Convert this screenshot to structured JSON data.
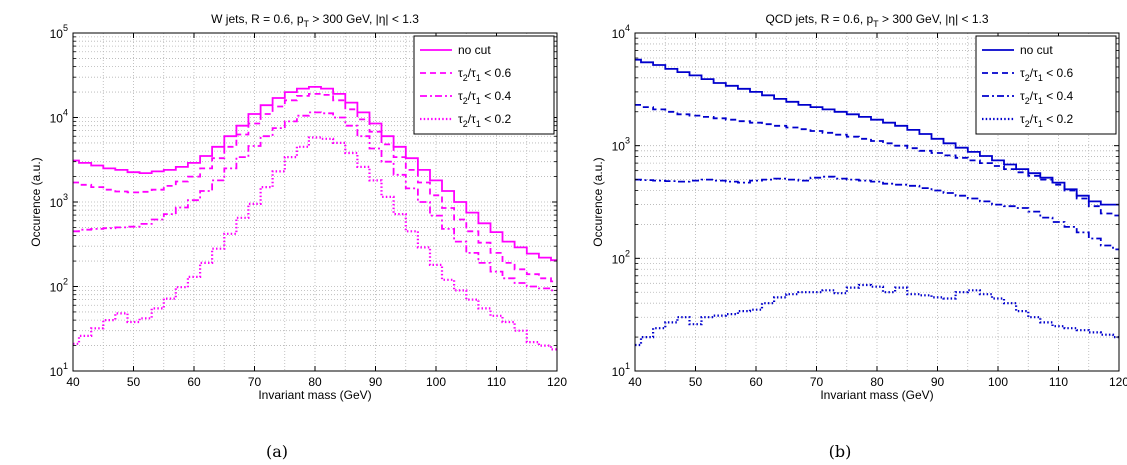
{
  "panels": [
    {
      "title_main": "W jets, R = 0.6, p",
      "title_sub": "T",
      "title_rest": " > 300 GeV, |η| < 1.3",
      "ylabel": "Occurence (a.u.)",
      "xlabel": "Invariant mass (GeV)",
      "caption": "(a)",
      "color": "#ff00ff",
      "y_ticks": [
        {
          "base": "10",
          "exp": "1"
        },
        {
          "base": "10",
          "exp": "2"
        },
        {
          "base": "10",
          "exp": "3"
        },
        {
          "base": "10",
          "exp": "4"
        },
        {
          "base": "10",
          "exp": "5"
        }
      ],
      "x_ticks": [
        "40",
        "50",
        "60",
        "70",
        "80",
        "90",
        "100",
        "110",
        "120"
      ],
      "legend": [
        {
          "main": "no cut",
          "style": "solid"
        },
        {
          "main": "τ",
          "s1": "2",
          "mid": "/τ",
          "s2": "1",
          "rest": " < 0.6",
          "style": "dashed"
        },
        {
          "main": "τ",
          "s1": "2",
          "mid": "/τ",
          "s2": "1",
          "rest": " < 0.4",
          "style": "dashdot"
        },
        {
          "main": "τ",
          "s1": "2",
          "mid": "/τ",
          "s2": "1",
          "rest": " < 0.2",
          "style": "dotted"
        }
      ]
    },
    {
      "title_main": "QCD jets, R = 0.6, p",
      "title_sub": "T",
      "title_rest": " > 300 GeV, |η| < 1.3",
      "ylabel": "Occurence (a.u.)",
      "xlabel": "Invariant mass (GeV)",
      "caption": "(b)",
      "color": "#0000cc",
      "y_ticks": [
        {
          "base": "10",
          "exp": "1"
        },
        {
          "base": "10",
          "exp": "2"
        },
        {
          "base": "10",
          "exp": "3"
        },
        {
          "base": "10",
          "exp": "4"
        }
      ],
      "x_ticks": [
        "40",
        "50",
        "60",
        "70",
        "80",
        "90",
        "100",
        "110",
        "120"
      ],
      "legend": [
        {
          "main": "no cut",
          "style": "solid"
        },
        {
          "main": "τ",
          "s1": "2",
          "mid": "/τ",
          "s2": "1",
          "rest": " < 0.6",
          "style": "dashed"
        },
        {
          "main": "τ",
          "s1": "2",
          "mid": "/τ",
          "s2": "1",
          "rest": " < 0.4",
          "style": "dashdot"
        },
        {
          "main": "τ",
          "s1": "2",
          "mid": "/τ",
          "s2": "1",
          "rest": " < 0.2",
          "style": "dotted"
        }
      ]
    }
  ],
  "chart_data": [
    {
      "type": "line",
      "title": "W jets, R = 0.6, pT > 300 GeV, |η| < 1.3",
      "xlabel": "Invariant mass (GeV)",
      "ylabel": "Occurence (a.u.)",
      "xlim": [
        40,
        120
      ],
      "ylim": [
        10,
        100000
      ],
      "yscale": "log",
      "grid": true,
      "legend_position": "top-right",
      "x": [
        40,
        42,
        44,
        46,
        48,
        50,
        52,
        54,
        56,
        58,
        60,
        62,
        64,
        66,
        68,
        70,
        72,
        74,
        76,
        78,
        80,
        82,
        84,
        86,
        88,
        90,
        92,
        94,
        96,
        98,
        100,
        102,
        104,
        106,
        108,
        110,
        112,
        114,
        116,
        118,
        120
      ],
      "series": [
        {
          "name": "no cut",
          "values": [
            3100,
            2900,
            2700,
            2500,
            2400,
            2250,
            2200,
            2300,
            2400,
            2600,
            2900,
            3500,
            4500,
            6000,
            8000,
            11000,
            14000,
            17000,
            20000,
            22000,
            23000,
            22000,
            19000,
            15000,
            11500,
            8500,
            6000,
            4500,
            3300,
            2400,
            1800,
            1350,
            1000,
            750,
            560,
            440,
            340,
            290,
            245,
            220,
            205
          ]
        },
        {
          "name": "τ2/τ1 < 0.6",
          "values": [
            1700,
            1600,
            1500,
            1400,
            1330,
            1300,
            1320,
            1400,
            1550,
            1750,
            2000,
            2500,
            3300,
            4500,
            6300,
            8500,
            11000,
            13500,
            16000,
            18000,
            19000,
            18500,
            16000,
            12500,
            9500,
            6800,
            4800,
            3400,
            2400,
            1700,
            1200,
            850,
            620,
            450,
            330,
            250,
            190,
            160,
            140,
            125,
            115
          ]
        },
        {
          "name": "τ2/τ1 < 0.4",
          "values": [
            450,
            470,
            480,
            490,
            500,
            510,
            550,
            620,
            720,
            860,
            1050,
            1350,
            1800,
            2500,
            3400,
            4600,
            6000,
            7500,
            9000,
            10500,
            11500,
            11200,
            10000,
            8000,
            6000,
            4300,
            3000,
            2100,
            1450,
            1000,
            690,
            480,
            340,
            250,
            190,
            150,
            125,
            110,
            100,
            95,
            90
          ]
        },
        {
          "name": "τ2/τ1 < 0.2",
          "values": [
            21,
            26,
            32,
            40,
            48,
            38,
            42,
            55,
            72,
            98,
            130,
            190,
            280,
            420,
            650,
            950,
            1500,
            2300,
            3400,
            4500,
            5800,
            5600,
            5000,
            3800,
            2600,
            1800,
            1150,
            720,
            450,
            290,
            180,
            120,
            90,
            70,
            55,
            45,
            38,
            30,
            22,
            20,
            18
          ]
        }
      ]
    },
    {
      "type": "line",
      "title": "QCD jets, R = 0.6, pT > 300 GeV, |η| < 1.3",
      "xlabel": "Invariant mass (GeV)",
      "ylabel": "Occurence (a.u.)",
      "xlim": [
        40,
        120
      ],
      "ylim": [
        10,
        10000
      ],
      "yscale": "log",
      "grid": true,
      "legend_position": "top-right",
      "x": [
        40,
        42,
        44,
        46,
        48,
        50,
        52,
        54,
        56,
        58,
        60,
        62,
        64,
        66,
        68,
        70,
        72,
        74,
        76,
        78,
        80,
        82,
        84,
        86,
        88,
        90,
        92,
        94,
        96,
        98,
        100,
        102,
        104,
        106,
        108,
        110,
        112,
        114,
        116,
        118,
        120
      ],
      "series": [
        {
          "name": "no cut",
          "values": [
            5800,
            5500,
            5200,
            4800,
            4500,
            4200,
            3900,
            3600,
            3400,
            3200,
            3000,
            2800,
            2600,
            2450,
            2300,
            2200,
            2100,
            2000,
            1900,
            1800,
            1700,
            1600,
            1500,
            1380,
            1270,
            1150,
            1050,
            960,
            880,
            810,
            740,
            680,
            620,
            570,
            520,
            470,
            410,
            360,
            320,
            300,
            300
          ]
        },
        {
          "name": "τ2/τ1 < 0.6",
          "values": [
            2300,
            2200,
            2100,
            2000,
            1900,
            1850,
            1800,
            1750,
            1700,
            1650,
            1600,
            1550,
            1500,
            1450,
            1400,
            1350,
            1300,
            1250,
            1200,
            1150,
            1100,
            1050,
            1000,
            950,
            900,
            860,
            820,
            780,
            740,
            700,
            660,
            620,
            580,
            540,
            500,
            450,
            400,
            340,
            290,
            250,
            240
          ]
        },
        {
          "name": "τ2/τ1 < 0.4",
          "values": [
            500,
            495,
            490,
            485,
            480,
            490,
            500,
            490,
            480,
            470,
            490,
            500,
            510,
            500,
            490,
            520,
            530,
            510,
            500,
            490,
            480,
            460,
            450,
            440,
            420,
            400,
            380,
            360,
            340,
            320,
            300,
            290,
            280,
            260,
            230,
            210,
            190,
            170,
            150,
            130,
            120
          ]
        },
        {
          "name": "τ2/τ1 < 0.2",
          "values": [
            17,
            20,
            24,
            27,
            30,
            26,
            30,
            31,
            32,
            34,
            35,
            40,
            45,
            48,
            50,
            50,
            52,
            49,
            55,
            58,
            56,
            50,
            55,
            48,
            47,
            45,
            44,
            50,
            52,
            48,
            44,
            40,
            34,
            30,
            27,
            25,
            24,
            23,
            22,
            21,
            20
          ]
        }
      ]
    }
  ]
}
